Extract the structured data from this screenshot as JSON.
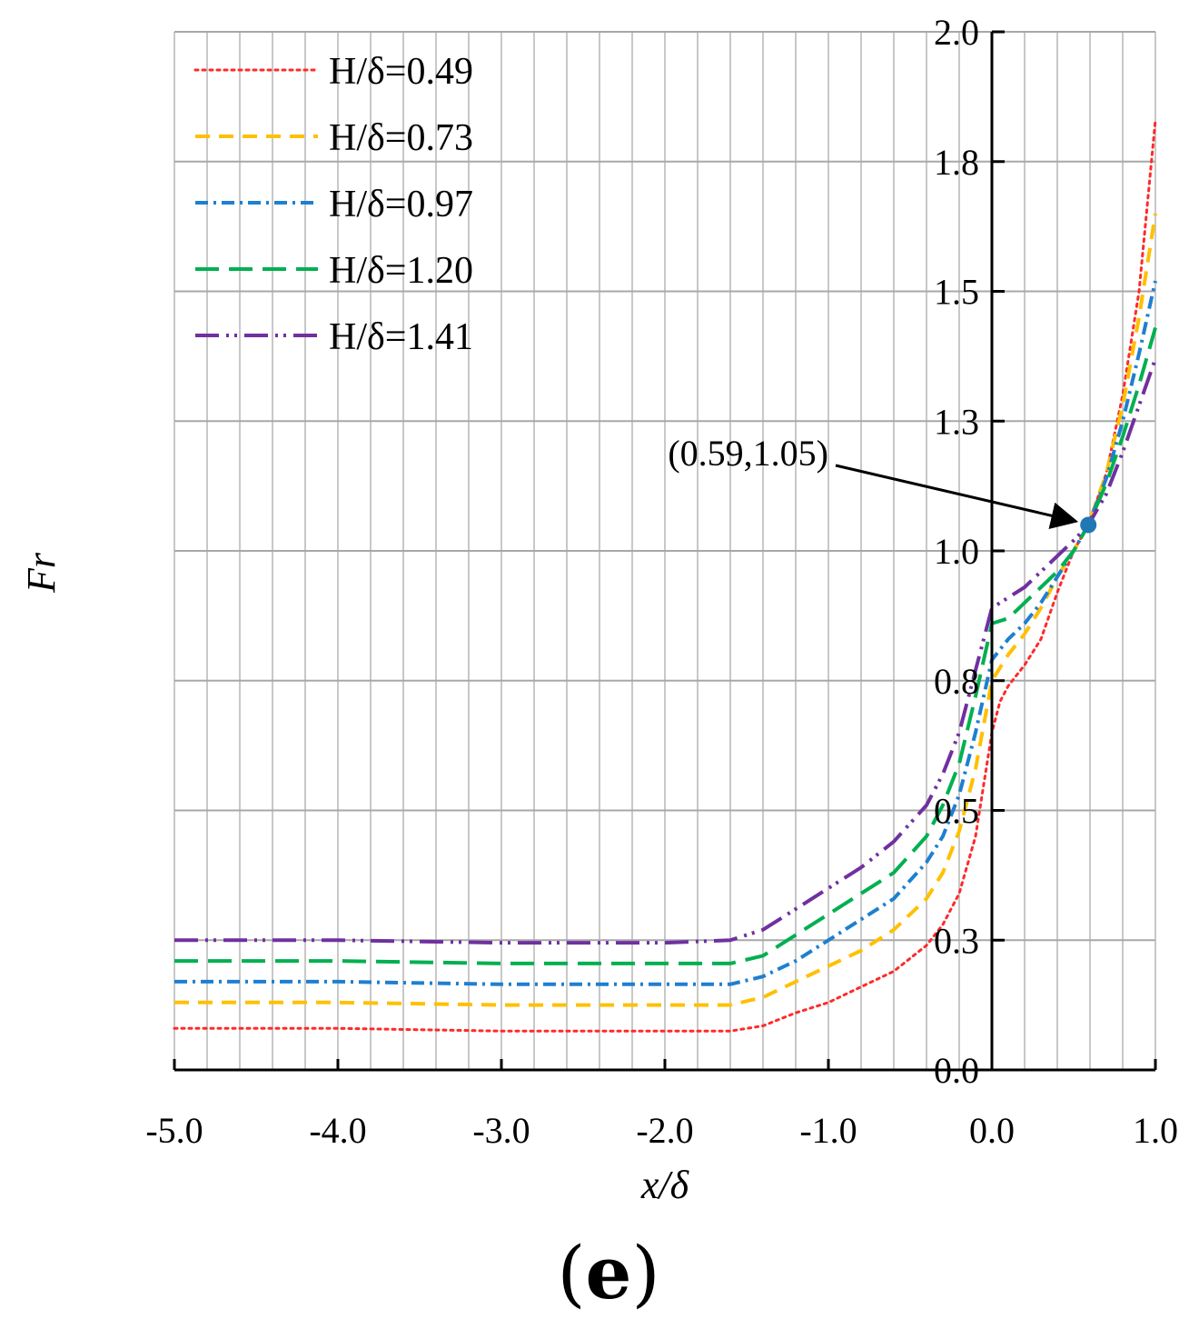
{
  "chart_data": {
    "type": "line",
    "xlabel": "x/δ",
    "ylabel": "Fr",
    "xlim": [
      -5.0,
      1.0
    ],
    "ylim": [
      0.0,
      2.0
    ],
    "x_ticks": [
      "-5.0",
      "-4.0",
      "-3.0",
      "-2.0",
      "-1.0",
      "0.0",
      "1.0"
    ],
    "y_ticks": [
      "0.0",
      "0.3",
      "0.5",
      "0.8",
      "1.0",
      "1.3",
      "1.5",
      "1.8",
      "2.0"
    ],
    "grid": true,
    "legend_position": "top-left",
    "panel_label": {
      "open": "(",
      "letter": "e",
      "close": ")"
    },
    "annotation": {
      "text": "(0.59,1.05)",
      "x": 0.59,
      "y": 1.05,
      "color": "#1f77b4"
    },
    "series": [
      {
        "name": "H/δ=0.49",
        "color": "#ff2a2a",
        "style": "dotted",
        "points": [
          [
            -5.0,
            0.08
          ],
          [
            -4.0,
            0.08
          ],
          [
            -3.0,
            0.075
          ],
          [
            -2.0,
            0.075
          ],
          [
            -1.6,
            0.075
          ],
          [
            -1.4,
            0.085
          ],
          [
            -1.2,
            0.11
          ],
          [
            -1.0,
            0.13
          ],
          [
            -0.8,
            0.16
          ],
          [
            -0.6,
            0.19
          ],
          [
            -0.4,
            0.24
          ],
          [
            -0.3,
            0.28
          ],
          [
            -0.2,
            0.34
          ],
          [
            -0.1,
            0.45
          ],
          [
            -0.05,
            0.55
          ],
          [
            0.0,
            0.65
          ],
          [
            0.05,
            0.71
          ],
          [
            0.1,
            0.74
          ],
          [
            0.2,
            0.78
          ],
          [
            0.3,
            0.83
          ],
          [
            0.4,
            0.92
          ],
          [
            0.5,
            1.0
          ],
          [
            0.59,
            1.05
          ],
          [
            0.7,
            1.15
          ],
          [
            0.8,
            1.3
          ],
          [
            0.9,
            1.5
          ],
          [
            1.0,
            1.83
          ]
        ]
      },
      {
        "name": "H/δ=0.73",
        "color": "#ffc000",
        "style": "dashed",
        "points": [
          [
            -5.0,
            0.13
          ],
          [
            -4.0,
            0.13
          ],
          [
            -3.0,
            0.125
          ],
          [
            -2.0,
            0.125
          ],
          [
            -1.6,
            0.125
          ],
          [
            -1.4,
            0.14
          ],
          [
            -1.2,
            0.17
          ],
          [
            -1.0,
            0.2
          ],
          [
            -0.8,
            0.23
          ],
          [
            -0.6,
            0.27
          ],
          [
            -0.4,
            0.33
          ],
          [
            -0.3,
            0.38
          ],
          [
            -0.2,
            0.46
          ],
          [
            -0.1,
            0.58
          ],
          [
            0.0,
            0.75
          ],
          [
            0.1,
            0.8
          ],
          [
            0.2,
            0.84
          ],
          [
            0.3,
            0.89
          ],
          [
            0.4,
            0.95
          ],
          [
            0.5,
            1.0
          ],
          [
            0.59,
            1.05
          ],
          [
            0.7,
            1.15
          ],
          [
            0.8,
            1.28
          ],
          [
            0.9,
            1.45
          ],
          [
            1.0,
            1.65
          ]
        ]
      },
      {
        "name": "H/δ=0.97",
        "color": "#1f7fd0",
        "style": "dashdot",
        "points": [
          [
            -5.0,
            0.17
          ],
          [
            -4.0,
            0.17
          ],
          [
            -3.0,
            0.165
          ],
          [
            -2.0,
            0.165
          ],
          [
            -1.6,
            0.165
          ],
          [
            -1.4,
            0.18
          ],
          [
            -1.2,
            0.21
          ],
          [
            -1.0,
            0.25
          ],
          [
            -0.8,
            0.29
          ],
          [
            -0.6,
            0.33
          ],
          [
            -0.4,
            0.4
          ],
          [
            -0.3,
            0.45
          ],
          [
            -0.2,
            0.53
          ],
          [
            -0.1,
            0.65
          ],
          [
            0.0,
            0.79
          ],
          [
            0.1,
            0.83
          ],
          [
            0.2,
            0.86
          ],
          [
            0.3,
            0.9
          ],
          [
            0.4,
            0.95
          ],
          [
            0.5,
            1.0
          ],
          [
            0.59,
            1.05
          ],
          [
            0.7,
            1.14
          ],
          [
            0.8,
            1.25
          ],
          [
            0.9,
            1.38
          ],
          [
            1.0,
            1.52
          ]
        ]
      },
      {
        "name": "H/δ=1.20",
        "color": "#00b050",
        "style": "longdash",
        "points": [
          [
            -5.0,
            0.21
          ],
          [
            -4.0,
            0.21
          ],
          [
            -3.0,
            0.205
          ],
          [
            -2.0,
            0.205
          ],
          [
            -1.6,
            0.205
          ],
          [
            -1.4,
            0.22
          ],
          [
            -1.2,
            0.26
          ],
          [
            -1.0,
            0.3
          ],
          [
            -0.8,
            0.34
          ],
          [
            -0.6,
            0.38
          ],
          [
            -0.4,
            0.45
          ],
          [
            -0.3,
            0.51
          ],
          [
            -0.2,
            0.59
          ],
          [
            -0.1,
            0.72
          ],
          [
            0.0,
            0.86
          ],
          [
            0.1,
            0.87
          ],
          [
            0.2,
            0.9
          ],
          [
            0.3,
            0.93
          ],
          [
            0.4,
            0.96
          ],
          [
            0.5,
            1.0
          ],
          [
            0.59,
            1.05
          ],
          [
            0.7,
            1.13
          ],
          [
            0.8,
            1.22
          ],
          [
            0.9,
            1.32
          ],
          [
            1.0,
            1.43
          ]
        ]
      },
      {
        "name": "H/δ=1.41",
        "color": "#7030a0",
        "style": "dashdotdot",
        "points": [
          [
            -5.0,
            0.25
          ],
          [
            -4.0,
            0.25
          ],
          [
            -3.0,
            0.245
          ],
          [
            -2.0,
            0.245
          ],
          [
            -1.6,
            0.25
          ],
          [
            -1.4,
            0.27
          ],
          [
            -1.2,
            0.31
          ],
          [
            -1.0,
            0.35
          ],
          [
            -0.8,
            0.39
          ],
          [
            -0.6,
            0.44
          ],
          [
            -0.4,
            0.51
          ],
          [
            -0.3,
            0.57
          ],
          [
            -0.2,
            0.65
          ],
          [
            -0.1,
            0.77
          ],
          [
            0.0,
            0.89
          ],
          [
            0.1,
            0.91
          ],
          [
            0.2,
            0.93
          ],
          [
            0.3,
            0.96
          ],
          [
            0.4,
            0.99
          ],
          [
            0.5,
            1.02
          ],
          [
            0.59,
            1.05
          ],
          [
            0.7,
            1.11
          ],
          [
            0.8,
            1.19
          ],
          [
            0.9,
            1.28
          ],
          [
            1.0,
            1.37
          ]
        ]
      }
    ]
  }
}
